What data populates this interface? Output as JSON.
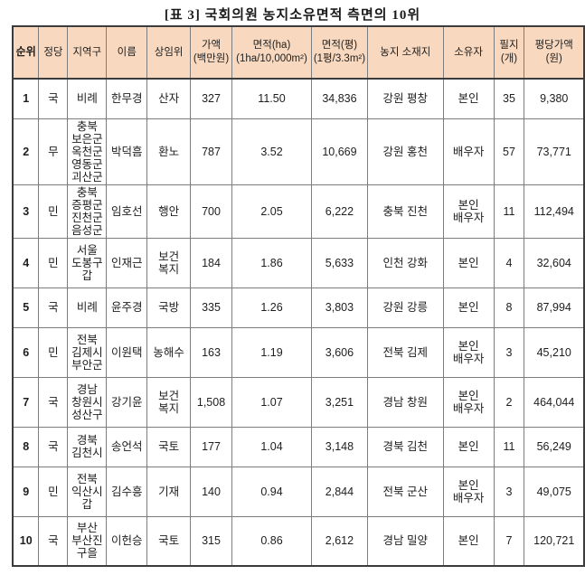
{
  "title": "[표 3]  국회의원 농지소유면적 측면의 10위",
  "colors": {
    "header_bg": "#f8d8be",
    "outer_border": "#3c3c3c",
    "inner_border": "#7d7d7d",
    "text": "#1e1e1e"
  },
  "table": {
    "column_keys": [
      "rank",
      "party",
      "district",
      "name",
      "committee",
      "value-million-won",
      "area-ha",
      "area-pyeong",
      "farmland-location",
      "owner",
      "parcels",
      "price-per-pyeong"
    ],
    "headers": [
      "순위",
      "정당",
      "지역구",
      "이름",
      "상임위",
      "가액\n(백만원)",
      "면적(ha)\n(1ha/10,000m²)",
      "면적(평)\n(1평/3.3m²)",
      "농지 소재지",
      "소유자",
      "필지\n(개)",
      "평당가액\n(원)"
    ],
    "rows": [
      [
        "1",
        "국",
        "비례",
        "한무경",
        "산자",
        "327",
        "11.50",
        "34,836",
        "강원 평창",
        "본인",
        "35",
        "9,380"
      ],
      [
        "2",
        "무",
        "충북\n보은군\n옥천군\n영동군\n괴산군",
        "박덕흠",
        "환노",
        "787",
        "3.52",
        "10,669",
        "강원 홍천",
        "배우자",
        "57",
        "73,771"
      ],
      [
        "3",
        "민",
        "충북\n증평군\n진천군\n음성군",
        "임호선",
        "행안",
        "700",
        "2.05",
        "6,222",
        "충북 진천",
        "본인\n배우자",
        "11",
        "112,494"
      ],
      [
        "4",
        "민",
        "서울\n도봉구\n갑",
        "인재근",
        "보건\n복지",
        "184",
        "1.86",
        "5,633",
        "인천 강화",
        "본인",
        "4",
        "32,604"
      ],
      [
        "5",
        "국",
        "비례",
        "윤주경",
        "국방",
        "335",
        "1.26",
        "3,803",
        "강원 강릉",
        "본인",
        "8",
        "87,994"
      ],
      [
        "6",
        "민",
        "전북\n김제시\n부안군",
        "이원택",
        "농해수",
        "163",
        "1.19",
        "3,606",
        "전북 김제",
        "본인\n배우자",
        "3",
        "45,210"
      ],
      [
        "7",
        "국",
        "경남\n창원시\n성산구",
        "강기윤",
        "보건\n복지",
        "1,508",
        "1.07",
        "3,251",
        "경남 창원",
        "본인\n배우자",
        "2",
        "464,044"
      ],
      [
        "8",
        "국",
        "경북\n김천시",
        "송언석",
        "국토",
        "177",
        "1.04",
        "3,148",
        "경북 김천",
        "본인",
        "11",
        "56,249"
      ],
      [
        "9",
        "민",
        "전북\n익산시\n갑",
        "김수흥",
        "기재",
        "140",
        "0.94",
        "2,844",
        "전북 군산",
        "본인\n배우자",
        "3",
        "49,075"
      ],
      [
        "10",
        "국",
        "부산\n부산진\n구을",
        "이헌승",
        "국토",
        "315",
        "0.86",
        "2,612",
        "경남 밀양",
        "본인",
        "7",
        "120,721"
      ]
    ]
  }
}
